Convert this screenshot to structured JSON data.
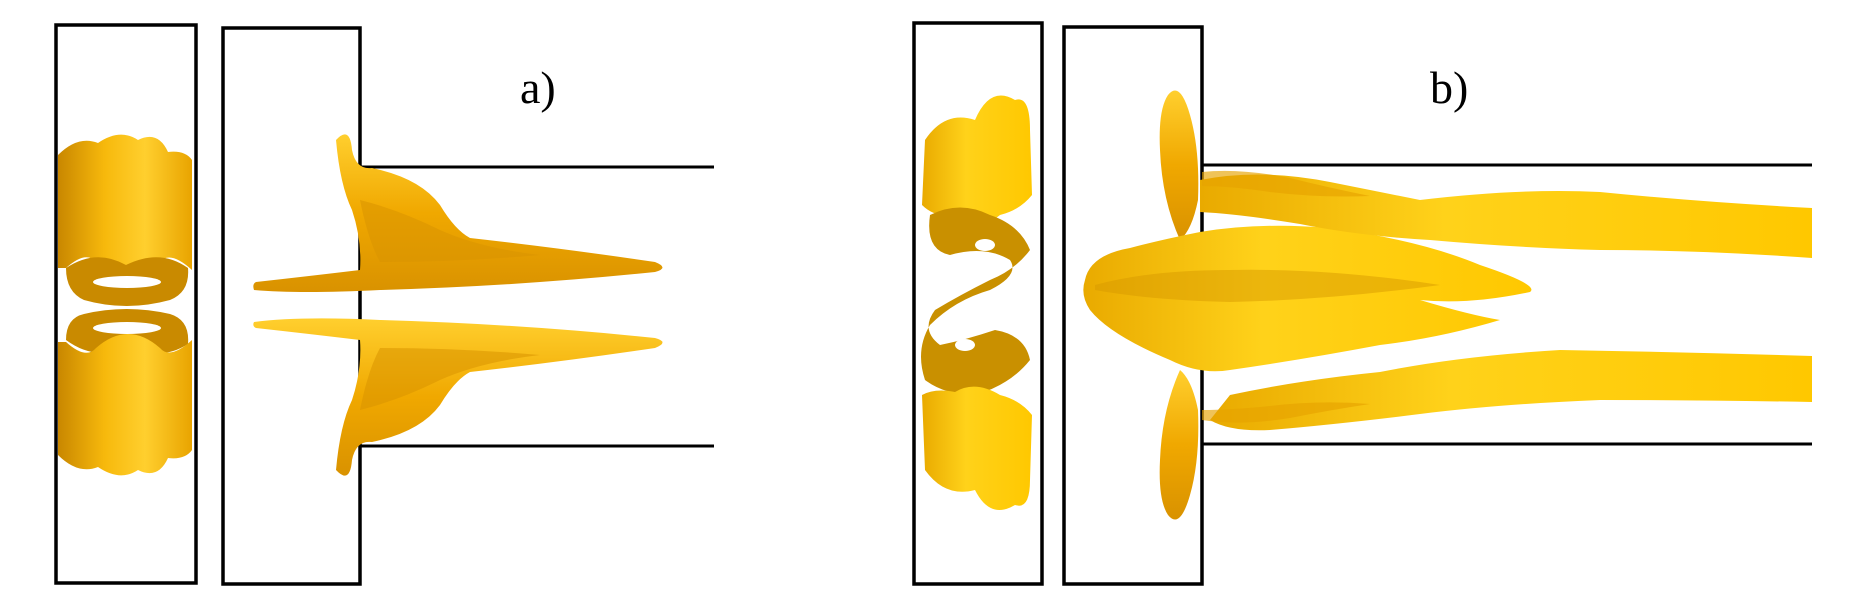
{
  "figure": {
    "panels": [
      {
        "id": "a",
        "label": "a)"
      },
      {
        "id": "b",
        "label": "b)"
      }
    ]
  },
  "colors": {
    "iso_fill": "#f5b70a",
    "iso_dark": "#b07400",
    "iso_light": "#ffd23a",
    "outline": "#000000",
    "background": "#ffffff"
  }
}
